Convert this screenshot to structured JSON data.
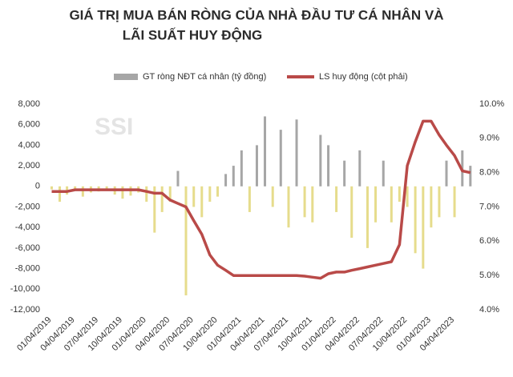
{
  "chart_data": {
    "type": "bar_line",
    "title": [
      "GIÁ TRỊ MUA BÁN RÒNG CỦA NHÀ ĐẦU TƯ CÁ NHÂN VÀ",
      "LÃI SUẤT HUY ĐỘNG"
    ],
    "watermark": "SSI",
    "x": [
      "01/04/2019",
      "02/04/2019",
      "03/04/2019",
      "04/04/2019",
      "05/04/2019",
      "06/04/2019",
      "07/04/2019",
      "08/04/2019",
      "09/04/2019",
      "10/04/2019",
      "11/04/2019",
      "12/04/2019",
      "01/04/2020",
      "02/04/2020",
      "03/04/2020",
      "04/04/2020",
      "05/04/2020",
      "06/04/2020",
      "07/04/2020",
      "08/04/2020",
      "09/04/2020",
      "10/04/2020",
      "11/04/2020",
      "12/04/2020",
      "01/04/2021",
      "02/04/2021",
      "03/04/2021",
      "04/04/2021",
      "05/04/2021",
      "06/04/2021",
      "07/04/2021",
      "08/04/2021",
      "09/04/2021",
      "10/04/2021",
      "11/04/2021",
      "12/04/2021",
      "01/04/2022",
      "02/04/2022",
      "03/04/2022",
      "04/04/2022",
      "05/04/2022",
      "06/04/2022",
      "07/04/2022",
      "08/04/2022",
      "09/04/2022",
      "10/04/2022",
      "11/04/2022",
      "12/04/2022",
      "01/04/2023",
      "02/04/2023",
      "03/04/2023",
      "04/04/2023",
      "05/04/2023",
      "06/04/2023"
    ],
    "xlim": [
      "12/15/2018",
      "06/20/2023"
    ],
    "xticks": [
      "01/04/2019",
      "04/04/2019",
      "07/04/2019",
      "10/04/2019",
      "01/04/2020",
      "04/04/2020",
      "07/04/2020",
      "10/04/2020",
      "01/04/2021",
      "04/04/2021",
      "07/04/2021",
      "10/04/2021",
      "01/04/2022",
      "04/04/2022",
      "07/04/2022",
      "10/04/2022",
      "01/04/2023",
      "04/04/2023"
    ],
    "ylim": [
      -12000,
      8000
    ],
    "yticks": [
      {
        "value": 8000,
        "label": "8,000"
      },
      {
        "value": 6000,
        "label": "6,000"
      },
      {
        "value": 4000,
        "label": "4,000"
      },
      {
        "value": 2000,
        "label": "2,000"
      },
      0,
      {
        "value": -2000,
        "label": "-2,000"
      },
      {
        "value": -4000,
        "label": "-4,000"
      },
      {
        "value": -6000,
        "label": "-6,000"
      },
      {
        "value": -8000,
        "label": "-8,000"
      },
      {
        "value": -10000,
        "label": "-10,000"
      },
      {
        "value": -12000,
        "label": "-12,000"
      }
    ],
    "y2lim": [
      4,
      10
    ],
    "y2ticks": [
      {
        "value": 10,
        "label": "10.0%"
      },
      {
        "value": 9,
        "label": "9.0%"
      },
      {
        "value": 8,
        "label": "8.0%"
      },
      {
        "value": 7,
        "label": "7.0%"
      },
      {
        "value": 6,
        "label": "6.0%"
      },
      {
        "value": 5,
        "label": "5.0%"
      },
      {
        "value": 4,
        "label": "4.0%"
      }
    ],
    "series": [
      {
        "name": "GT ròng NĐT cá nhân (tỷ đồng)",
        "type": "bar",
        "color": "#a6a6a6",
        "negative_color": "#e6dc8c",
        "values": [
          -300,
          -1500,
          -800,
          -400,
          -1000,
          -600,
          -500,
          -300,
          -800,
          -1200,
          -900,
          -600,
          -1500,
          -4500,
          -2500,
          -1500,
          1500,
          -10600,
          -2000,
          -3000,
          -1500,
          -1000,
          1200,
          2000,
          3500,
          -2500,
          4000,
          6800,
          -2000,
          5500,
          -4000,
          6500,
          -3000,
          -3500,
          5000,
          4000,
          -2500,
          2500,
          -5000,
          3500,
          -6000,
          -3500,
          2500,
          -3500,
          -1500,
          -2000,
          -6500,
          -8000,
          -4000,
          -3000,
          2500,
          -3000,
          3500,
          2000
        ]
      },
      {
        "name": "LS huy động (cột phải)",
        "type": "line",
        "axis": "y2",
        "color": "#b94a48",
        "values": [
          7.45,
          7.45,
          7.45,
          7.5,
          7.5,
          7.5,
          7.5,
          7.5,
          7.5,
          7.5,
          7.5,
          7.5,
          7.45,
          7.4,
          7.4,
          7.2,
          7.1,
          7.0,
          6.6,
          6.2,
          5.6,
          5.3,
          5.15,
          5.0,
          5.0,
          5.0,
          5.0,
          5.0,
          5.0,
          5.0,
          5.0,
          5.0,
          4.98,
          4.95,
          4.92,
          5.05,
          5.1,
          5.1,
          5.15,
          5.2,
          5.25,
          5.3,
          5.35,
          5.4,
          5.9,
          8.2,
          8.9,
          9.5,
          9.5,
          9.1,
          8.8,
          8.5,
          8.05,
          8.0
        ]
      }
    ]
  }
}
